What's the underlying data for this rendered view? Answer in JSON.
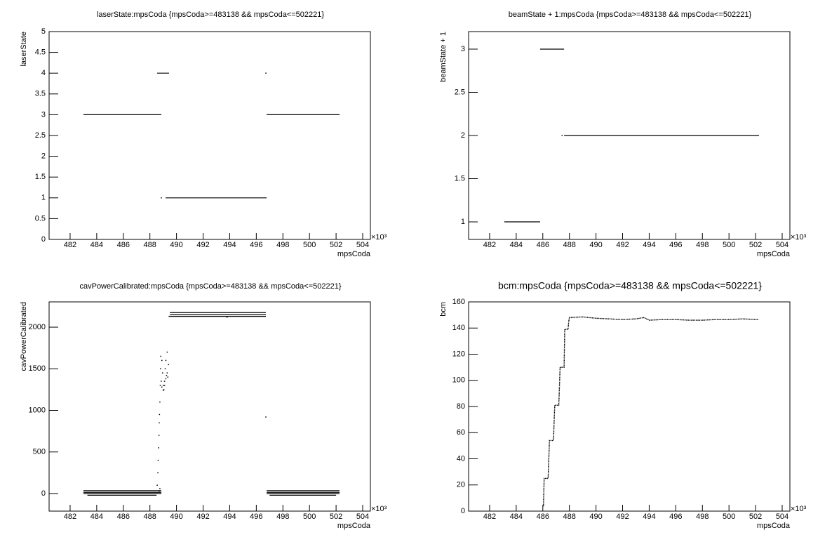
{
  "chart_data": [
    {
      "type": "scatter",
      "title": "laserState:mpsCoda {mpsCoda>=483138 && mpsCoda<=502221}",
      "xlabel": "mpsCoda",
      "ylabel": "laserState",
      "x_exponent": "×10³",
      "color": "#000000",
      "xlim": [
        480.42,
        504.58
      ],
      "ylim": [
        0,
        5
      ],
      "xticks": [
        482,
        484,
        486,
        488,
        490,
        492,
        494,
        496,
        498,
        500,
        502,
        504
      ],
      "yticks": [
        0,
        0.5,
        1,
        1.5,
        2,
        2.5,
        3,
        3.5,
        4,
        4.5,
        5
      ],
      "segments": {
        "x_start": [
          483.0,
          488.54,
          489.18,
          496.78
        ],
        "x_end": [
          488.86,
          489.44,
          496.78,
          502.26
        ],
        "values": [
          3,
          4,
          1,
          3
        ]
      },
      "points": {
        "x": [
          488.86,
          496.72
        ],
        "values": [
          1,
          4
        ]
      }
    },
    {
      "type": "scatter",
      "title": "beamState + 1:mpsCoda {mpsCoda>=483138 && mpsCoda<=502221}",
      "xlabel": "mpsCoda",
      "ylabel": "beamState + 1",
      "x_exponent": "×10³",
      "color": "#000000",
      "xlim": [
        480.42,
        504.58
      ],
      "ylim": [
        0.797,
        3.203
      ],
      "xticks": [
        482,
        484,
        486,
        488,
        490,
        492,
        494,
        496,
        498,
        500,
        502,
        504
      ],
      "yticks": [
        1,
        1.5,
        2,
        2.5,
        3
      ],
      "segments": {
        "x_start": [
          483.1,
          485.8,
          487.6
        ],
        "x_end": [
          485.8,
          487.6,
          502.26
        ],
        "values": [
          1,
          3,
          2
        ]
      },
      "points": {
        "x": [
          487.45
        ],
        "values": [
          2
        ]
      }
    },
    {
      "type": "scatter",
      "title": "cavPowerCalibrated:mpsCoda {mpsCoda>=483138 && mpsCoda<=502221}",
      "xlabel": "mpsCoda",
      "ylabel": "cavPowerCalibrated",
      "x_exponent": "×10³",
      "color": "#000000",
      "xlim": [
        480.42,
        504.58
      ],
      "ylim": [
        -211,
        2304
      ],
      "xticks": [
        482,
        484,
        486,
        488,
        490,
        492,
        494,
        496,
        498,
        500,
        502,
        504
      ],
      "yticks": [
        0,
        500,
        1000,
        1500,
        2000
      ],
      "segments": {
        "x_start": [
          483.0,
          483.0,
          483.0,
          483.3,
          489.5,
          489.5,
          489.5,
          496.78,
          496.78,
          496.78,
          497.0
        ],
        "x_end": [
          488.86,
          488.86,
          488.86,
          488.5,
          496.72,
          496.72,
          496.72,
          502.26,
          502.26,
          502.26,
          502.0
        ],
        "values": [
          35,
          15,
          0,
          -20,
          2175,
          2150,
          2130,
          35,
          15,
          0,
          -20
        ]
      },
      "points": {
        "x": [
          488.55,
          488.6,
          488.62,
          488.65,
          488.68,
          488.7,
          488.72,
          488.75,
          488.78,
          488.8,
          488.82,
          488.9,
          488.95,
          489.0,
          489.05,
          489.1,
          489.15,
          489.2,
          489.3,
          489.3,
          489.35,
          489.4,
          489.45,
          496.72,
          488.7,
          488.75,
          488.85,
          488.9,
          489.0,
          489.1,
          489.2,
          489.25,
          493.8
        ],
        "values": [
          100,
          250,
          400,
          550,
          700,
          850,
          950,
          1100,
          1300,
          1500,
          1650,
          1600,
          1450,
          1300,
          1250,
          1350,
          1500,
          1600,
          1700,
          1450,
          1400,
          1550,
          2130,
          920,
          30,
          60,
          1350,
          1280,
          1240,
          1300,
          1380,
          1420,
          2120
        ]
      }
    },
    {
      "type": "line",
      "title": "bcm:mpsCoda {mpsCoda>=483138 && mpsCoda<=502221}",
      "xlabel": "mpsCoda",
      "ylabel": "bcm",
      "x_exponent": "×10³",
      "color": "#000000",
      "xlim": [
        480.42,
        504.58
      ],
      "ylim": [
        0,
        160
      ],
      "xticks": [
        482,
        484,
        486,
        488,
        490,
        492,
        494,
        496,
        498,
        500,
        502,
        504
      ],
      "yticks": [
        0,
        20,
        40,
        60,
        80,
        100,
        120,
        140,
        160
      ],
      "x": [
        486.0,
        486.05,
        486.1,
        486.4,
        486.45,
        486.5,
        486.8,
        486.85,
        486.9,
        487.2,
        487.25,
        487.3,
        487.6,
        487.65,
        487.9,
        487.95,
        488.0,
        489.0,
        490.0,
        491.0,
        492.0,
        493.0,
        493.6,
        494.0,
        495.0,
        496.0,
        497.0,
        498.0,
        499.0,
        500.0,
        501.0,
        502.2
      ],
      "values": [
        4,
        4,
        25,
        25,
        40,
        54,
        54,
        68,
        81,
        81,
        95,
        110,
        110,
        139,
        139,
        145,
        148,
        148.5,
        147.5,
        147,
        146.5,
        147,
        148,
        146,
        146.5,
        146.5,
        146,
        146,
        146.5,
        146.5,
        147,
        146.5
      ]
    }
  ]
}
